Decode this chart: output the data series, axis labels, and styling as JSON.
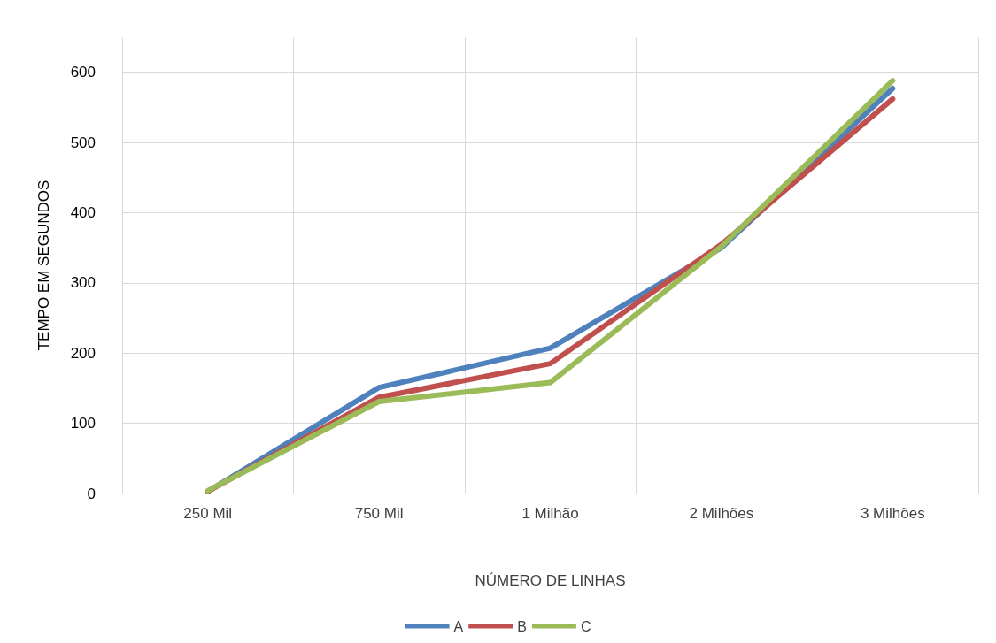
{
  "chart_data": {
    "type": "line",
    "xlabel": "NÚMERO DE LINHAS",
    "ylabel": "TEMPO EM SEGUNDOS",
    "categories": [
      "250 Mil",
      "750 Mil",
      "1 Milhão",
      "2 Milhões",
      "3 Milhões"
    ],
    "series": [
      {
        "name": "A",
        "color": "#4f81bd",
        "values": [
          3,
          151,
          207,
          350,
          577
        ]
      },
      {
        "name": "B",
        "color": "#c0504d",
        "values": [
          3,
          137,
          185,
          355,
          562
        ]
      },
      {
        "name": "C",
        "color": "#9bbb59",
        "values": [
          4,
          131,
          158,
          352,
          588
        ]
      }
    ],
    "ylim": [
      0,
      650
    ],
    "yticks": [
      0,
      100,
      200,
      300,
      400,
      500,
      600
    ],
    "grid": true,
    "legend": "bottom",
    "marker": "none",
    "line_style": "solid"
  }
}
